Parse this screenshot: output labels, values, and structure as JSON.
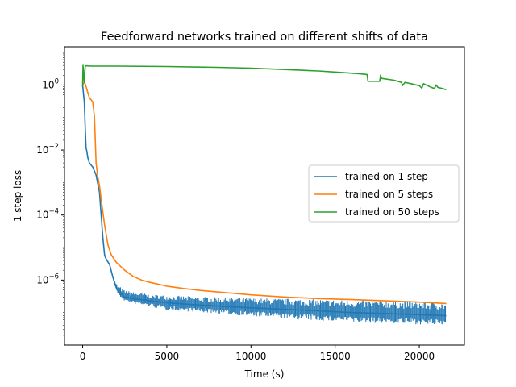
{
  "chart_data": {
    "type": "line",
    "title": "Feedforward networks trained on different shifts of data",
    "xlabel": "Time (s)",
    "ylabel": "1 step loss",
    "xscale": "linear",
    "yscale": "log",
    "xlim": [
      -1080,
      22680
    ],
    "ylim": [
      1e-08,
      15
    ],
    "xticks": [
      0,
      5000,
      10000,
      15000,
      20000
    ],
    "xtick_labels": [
      "0",
      "5000",
      "10000",
      "15000",
      "20000"
    ],
    "yticks": [
      1e-06,
      0.0001,
      0.01,
      1
    ],
    "ytick_labels": [
      {
        "base": "10",
        "exp": "−6"
      },
      {
        "base": "10",
        "exp": "−4"
      },
      {
        "base": "10",
        "exp": "−2"
      },
      {
        "base": "10",
        "exp": "0"
      }
    ],
    "grid": false,
    "legend_position": "center-right",
    "series": [
      {
        "name": "trained on 1 step",
        "color": "#1f77b4",
        "x": [
          0,
          100,
          150,
          200,
          250,
          300,
          400,
          600,
          800,
          1000,
          1200,
          1300,
          1350,
          1450,
          1600,
          1750,
          1900,
          2050,
          2200,
          2500,
          3000,
          4000,
          5000,
          7000,
          10000,
          13000,
          16000,
          19000,
          21600
        ],
        "y": [
          1.0,
          0.3,
          0.05,
          0.012,
          0.009,
          0.006,
          0.004,
          0.003,
          0.0017,
          0.0005,
          2e-05,
          6e-06,
          5e-06,
          4e-06,
          3e-06,
          1.5e-06,
          8e-07,
          5e-07,
          4e-07,
          3e-07,
          2.7e-07,
          2.3e-07,
          2e-07,
          1.7e-07,
          1.4e-07,
          1.2e-07,
          1e-07,
          9e-08,
          8e-08
        ],
        "noise_high": [
          1,
          1,
          1,
          1,
          1,
          1,
          1,
          1,
          1,
          1,
          1,
          1,
          1,
          1,
          1,
          1,
          1.2,
          1.4,
          1.6,
          1.6,
          1.6,
          1.6,
          1.7,
          1.8,
          2.0,
          2.2,
          2.4,
          2.6,
          2.6
        ],
        "noise_low": [
          1,
          1,
          1,
          1,
          1,
          1,
          1,
          1,
          1,
          1,
          1,
          1,
          1,
          1,
          1,
          1,
          0.9,
          0.85,
          0.8,
          0.75,
          0.7,
          0.65,
          0.6,
          0.6,
          0.55,
          0.5,
          0.5,
          0.5,
          0.5
        ]
      },
      {
        "name": "trained on 5 steps",
        "color": "#ff7f0e",
        "x": [
          0,
          100,
          150,
          200,
          300,
          400,
          500,
          600,
          700,
          750,
          800,
          900,
          1000,
          1100,
          1300,
          1500,
          1700,
          2000,
          2500,
          3000,
          3500,
          4000,
          5000,
          6000,
          7000,
          8000,
          10000,
          12000,
          14000,
          16000,
          18000,
          20000,
          21600
        ],
        "y": [
          1.0,
          1.2,
          1.1,
          0.9,
          0.6,
          0.4,
          0.35,
          0.3,
          0.1,
          0.02,
          0.004,
          0.0015,
          0.0008,
          0.0003,
          5e-05,
          1.2e-05,
          6e-06,
          3.5e-06,
          2e-06,
          1.3e-06,
          1e-06,
          8.5e-07,
          6.5e-07,
          5.5e-07,
          4.8e-07,
          4.3e-07,
          3.5e-07,
          3e-07,
          2.7e-07,
          2.5e-07,
          2.3e-07,
          2.1e-07,
          1.9e-07
        ]
      },
      {
        "name": "trained on 50 steps",
        "color": "#2ca02c",
        "x": [
          0,
          20,
          50,
          100,
          150,
          200,
          500,
          2000,
          5000,
          8000,
          10000,
          12000,
          14000,
          15500,
          16500,
          16900,
          16950,
          17650,
          17700,
          17750,
          18500,
          18950,
          19000,
          19150,
          19500,
          20000,
          20150,
          20250,
          20700,
          20900,
          21000,
          21100,
          21600
        ],
        "y": [
          0.9,
          4.0,
          2.5,
          1.2,
          3.8,
          3.9,
          3.8,
          3.8,
          3.7,
          3.5,
          3.3,
          3.0,
          2.7,
          2.4,
          2.2,
          2.1,
          1.3,
          1.3,
          2.0,
          1.6,
          1.4,
          1.2,
          0.95,
          1.2,
          1.1,
          0.95,
          0.8,
          1.1,
          0.85,
          0.78,
          1.0,
          0.85,
          0.72
        ]
      }
    ]
  }
}
